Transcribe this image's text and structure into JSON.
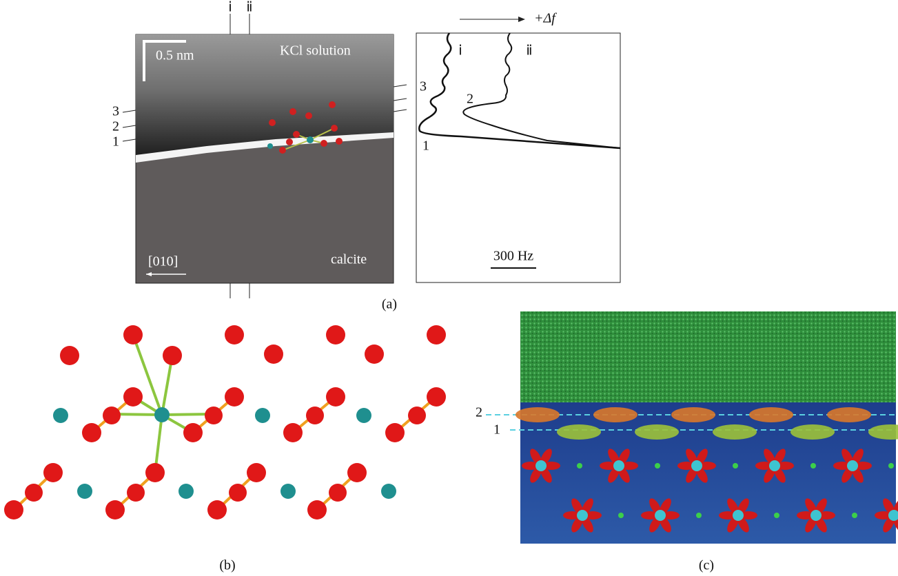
{
  "panel_a": {
    "afm_image": {
      "tip_labels": [
        "ⅰ",
        "ⅱ"
      ],
      "scale_bar": "0.5 nm",
      "top_label": "KCl  solution",
      "bottom_label": "calcite",
      "direction": "[010]",
      "layer_labels": [
        "3",
        "2",
        "1"
      ]
    },
    "profile": {
      "axis_label": "+Δf",
      "curve_labels": [
        "ⅰ",
        "ⅱ"
      ],
      "peak_labels": [
        "3",
        "2",
        "1"
      ],
      "scale_bar": "300 Hz"
    },
    "caption": "(a)"
  },
  "panel_b": {
    "caption": "(b)"
  },
  "panel_c": {
    "layer_labels": [
      "2",
      "1"
    ],
    "caption": "(c)"
  }
}
